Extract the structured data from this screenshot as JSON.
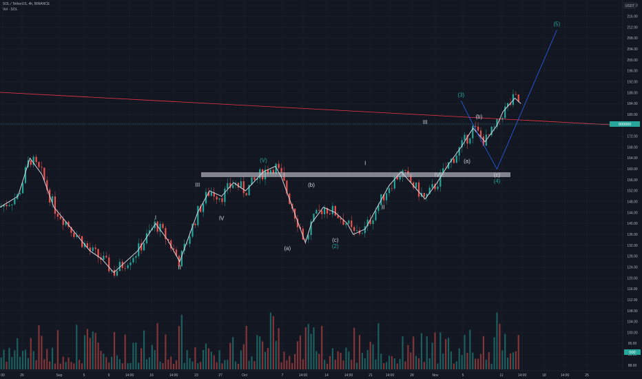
{
  "header": {
    "symbol_line": "SOL / TetherUS, 4h, BINANCE",
    "vol_line": "Vol · SOL"
  },
  "chart_data": {
    "type": "candlestick",
    "symbol": "SOL / TetherUS",
    "interval": "4h",
    "exchange": "BINANCE",
    "currency": "USDT",
    "y_ticks": [
      220,
      216,
      212,
      208,
      204,
      200,
      196,
      192,
      188,
      184,
      180,
      176,
      172,
      168,
      164,
      160,
      156,
      152,
      148,
      144,
      140,
      136,
      132,
      128,
      124,
      120,
      116,
      112,
      108,
      104,
      100,
      96,
      92,
      88
    ],
    "ylim": [
      86,
      222
    ],
    "x_ticks": [
      "00",
      "26",
      "Sep",
      "5",
      "9",
      "14:00",
      "16",
      "14:00",
      "23",
      "27",
      "Oct",
      "7",
      "14:00",
      "14",
      "14:00",
      "21",
      "14:00",
      "28",
      "Nov",
      "5",
      "11",
      "14:00",
      "18",
      "14:00",
      "25"
    ],
    "last_price_label": "000000",
    "volume_label": "000",
    "colors": {
      "up": "#26a69a",
      "down": "#ef5350",
      "wave": "#d1d4dc",
      "projection": "#2962ff",
      "resistance": "#f23645",
      "zone": "#b2b5be",
      "accent": "#26a69a"
    },
    "series": [
      {
        "name": "price path",
        "points": [
          [
            0,
            146
          ],
          [
            3,
            150
          ],
          [
            5,
            164
          ],
          [
            7,
            158
          ],
          [
            9,
            146
          ],
          [
            12,
            138
          ],
          [
            15,
            130
          ],
          [
            17,
            127
          ],
          [
            19,
            122
          ],
          [
            23,
            130
          ],
          [
            26,
            140
          ],
          [
            28,
            134
          ],
          [
            30,
            126
          ],
          [
            33,
            144
          ],
          [
            35,
            152
          ],
          [
            37,
            150
          ],
          [
            39,
            155
          ],
          [
            41,
            152
          ],
          [
            44,
            159
          ],
          [
            46,
            161
          ],
          [
            47,
            157
          ],
          [
            49,
            145
          ],
          [
            51,
            133
          ],
          [
            52,
            140
          ],
          [
            54,
            146
          ],
          [
            56,
            144
          ],
          [
            58,
            140
          ],
          [
            59,
            136
          ],
          [
            61,
            138
          ],
          [
            63,
            146
          ],
          [
            65,
            154
          ],
          [
            67,
            159
          ],
          [
            69,
            154
          ],
          [
            71,
            149
          ],
          [
            73,
            155
          ],
          [
            75,
            162
          ],
          [
            77,
            168
          ],
          [
            79,
            175
          ],
          [
            81,
            170
          ],
          [
            83,
            176
          ],
          [
            84,
            181
          ],
          [
            86,
            186
          ],
          [
            87,
            184
          ]
        ]
      }
    ],
    "wave_count": [
      {
        "label": "I",
        "x": 26,
        "y": 140,
        "pos": "above"
      },
      {
        "label": "II",
        "x": 30,
        "y": 126,
        "pos": "below"
      },
      {
        "label": "III",
        "x": 33,
        "y": 152,
        "pos": "above"
      },
      {
        "label": "IV",
        "x": 37,
        "y": 144,
        "pos": "below"
      },
      {
        "label": "(V)",
        "x": 44,
        "y": 161,
        "pos": "above"
      },
      {
        "label": "(a)",
        "x": 48,
        "y": 133,
        "pos": "below"
      },
      {
        "label": "(b)",
        "x": 52,
        "y": 152,
        "pos": "above"
      },
      {
        "label": "(c)",
        "x": 56,
        "y": 136,
        "pos": "below"
      },
      {
        "label": "(2)",
        "x": 56,
        "y": 136,
        "pos": "below2"
      },
      {
        "label": "I",
        "x": 61,
        "y": 160,
        "pos": "above"
      },
      {
        "label": "II",
        "x": 64,
        "y": 148,
        "pos": "below"
      },
      {
        "label": "III",
        "x": 71,
        "y": 175,
        "pos": "above"
      },
      {
        "label": "IV",
        "x": 73,
        "y": 160,
        "pos": "below"
      },
      {
        "label": "(3)",
        "x": 77,
        "y": 185,
        "pos": "above"
      },
      {
        "label": "(a)",
        "x": 78,
        "y": 165,
        "pos": "below"
      },
      {
        "label": "(b)",
        "x": 80,
        "y": 177,
        "pos": "above"
      },
      {
        "label": "(c)",
        "x": 83,
        "y": 160,
        "pos": "below"
      },
      {
        "label": "(4)",
        "x": 83,
        "y": 160,
        "pos": "below2"
      },
      {
        "label": "(5)",
        "x": 93,
        "y": 211,
        "pos": "above"
      }
    ]
  }
}
